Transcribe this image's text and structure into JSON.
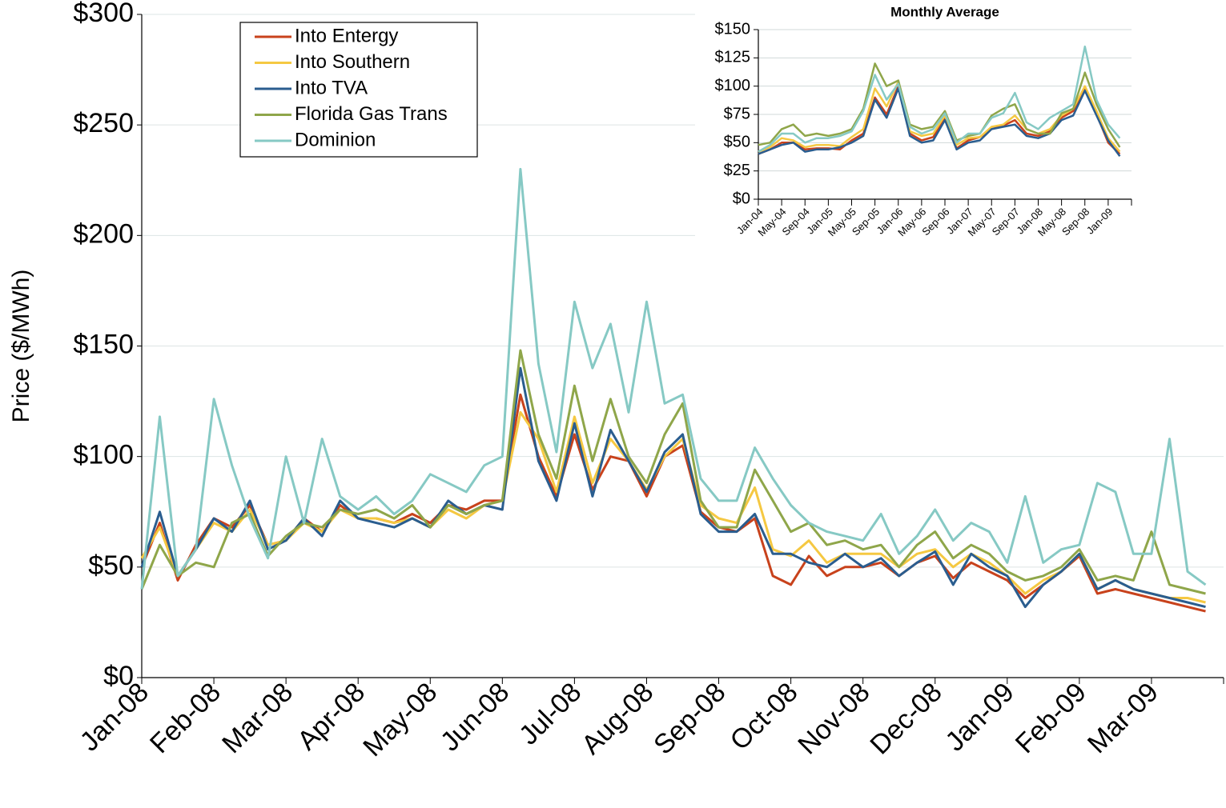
{
  "chart_data": [
    {
      "type": "line",
      "y_label": "Price ($/MWh)",
      "categories": [
        "Jan-08",
        null,
        null,
        null,
        "Feb-08",
        null,
        null,
        null,
        "Mar-08",
        null,
        null,
        null,
        "Apr-08",
        null,
        null,
        null,
        "May-08",
        null,
        null,
        null,
        "Jun-08",
        null,
        null,
        null,
        "Jul-08",
        null,
        null,
        null,
        "Aug-08",
        null,
        null,
        null,
        "Sep-08",
        null,
        null,
        null,
        "Oct-08",
        null,
        null,
        null,
        "Nov-08",
        null,
        null,
        null,
        "Dec-08",
        null,
        null,
        null,
        "Jan-09",
        null,
        null,
        null,
        "Feb-09",
        null,
        null,
        null,
        "Mar-09",
        null,
        null,
        null
      ],
      "series": [
        {
          "name": "Into Entergy",
          "color": "#c8421c",
          "values": [
            50,
            70,
            44,
            60,
            72,
            68,
            78,
            60,
            62,
            72,
            66,
            78,
            72,
            72,
            70,
            74,
            70,
            78,
            76,
            80,
            80,
            128,
            100,
            82,
            110,
            85,
            100,
            98,
            82,
            100,
            105,
            75,
            68,
            66,
            72,
            46,
            42,
            55,
            46,
            50,
            50,
            52,
            46,
            52,
            55,
            45,
            52,
            48,
            44,
            36,
            42,
            48,
            55,
            38,
            40,
            38,
            36,
            34,
            32,
            30
          ]
        },
        {
          "name": "Into Southern",
          "color": "#f5c842",
          "values": [
            54,
            68,
            46,
            58,
            70,
            66,
            76,
            60,
            62,
            70,
            66,
            76,
            72,
            72,
            70,
            72,
            68,
            76,
            72,
            78,
            80,
            120,
            108,
            84,
            118,
            88,
            108,
            98,
            85,
            100,
            108,
            78,
            72,
            70,
            86,
            58,
            55,
            62,
            52,
            56,
            56,
            56,
            50,
            56,
            58,
            50,
            56,
            52,
            46,
            38,
            44,
            48,
            56,
            40,
            44,
            40,
            38,
            36,
            36,
            34
          ]
        },
        {
          "name": "Into TVA",
          "color": "#2a5d8f",
          "values": [
            50,
            75,
            46,
            58,
            72,
            66,
            80,
            58,
            62,
            72,
            64,
            80,
            72,
            70,
            68,
            72,
            68,
            80,
            74,
            78,
            76,
            140,
            98,
            80,
            115,
            82,
            112,
            98,
            84,
            102,
            110,
            74,
            66,
            66,
            74,
            56,
            56,
            52,
            50,
            56,
            50,
            54,
            46,
            52,
            57,
            42,
            56,
            50,
            46,
            32,
            42,
            48,
            56,
            40,
            44,
            40,
            38,
            36,
            34,
            32
          ]
        },
        {
          "name": "Florida Gas Trans",
          "color": "#8fa64a",
          "values": [
            40,
            60,
            46,
            52,
            50,
            70,
            74,
            55,
            64,
            70,
            68,
            76,
            74,
            76,
            72,
            78,
            68,
            78,
            74,
            78,
            80,
            148,
            110,
            90,
            132,
            98,
            126,
            100,
            88,
            110,
            124,
            80,
            68,
            68,
            94,
            80,
            66,
            70,
            60,
            62,
            58,
            60,
            50,
            60,
            66,
            54,
            60,
            56,
            48,
            44,
            46,
            50,
            58,
            44,
            46,
            44,
            66,
            42,
            40,
            38
          ]
        },
        {
          "name": "Dominion",
          "color": "#86c9c4",
          "values": [
            40,
            118,
            46,
            58,
            126,
            96,
            72,
            54,
            100,
            70,
            108,
            82,
            76,
            82,
            74,
            80,
            92,
            88,
            84,
            96,
            100,
            230,
            142,
            102,
            170,
            140,
            160,
            120,
            170,
            124,
            128,
            90,
            80,
            80,
            104,
            90,
            78,
            70,
            66,
            64,
            62,
            74,
            56,
            64,
            76,
            62,
            70,
            66,
            52,
            82,
            52,
            58,
            60,
            88,
            84,
            56,
            56,
            108,
            48,
            42
          ]
        }
      ],
      "ylim": [
        0,
        300
      ],
      "yticks": [
        {
          "value": 0,
          "label": "$0"
        },
        {
          "value": 50,
          "label": "$50"
        },
        {
          "value": 100,
          "label": "$100"
        },
        {
          "value": 150,
          "label": "$150"
        },
        {
          "value": 200,
          "label": "$200"
        },
        {
          "value": 250,
          "label": "$250"
        },
        {
          "value": 300,
          "label": "$300"
        }
      ],
      "grid": true,
      "legend": "upper left"
    },
    {
      "type": "line",
      "title": "Monthly Average",
      "categories": [
        "Jan-04",
        null,
        "May-04",
        null,
        "Sep-04",
        null,
        "Jan-05",
        null,
        "May-05",
        null,
        "Sep-05",
        null,
        "Jan-06",
        null,
        "May-06",
        null,
        "Sep-06",
        null,
        "Jan-07",
        null,
        "May-07",
        null,
        "Sep-07",
        null,
        "Jan-08",
        null,
        "May-08",
        null,
        "Sep-08",
        null,
        "Jan-09",
        null
      ],
      "series": [
        {
          "name": "Into Entergy",
          "color": "#c8421c",
          "values": [
            40,
            44,
            50,
            50,
            44,
            45,
            45,
            44,
            52,
            58,
            90,
            75,
            100,
            58,
            52,
            55,
            72,
            45,
            52,
            55,
            62,
            65,
            70,
            58,
            56,
            60,
            72,
            78,
            98,
            75,
            50,
            40
          ]
        },
        {
          "name": "Into Southern",
          "color": "#f5c842",
          "values": [
            42,
            46,
            54,
            52,
            46,
            48,
            48,
            47,
            55,
            62,
            98,
            82,
            104,
            60,
            56,
            58,
            74,
            48,
            54,
            55,
            64,
            66,
            74,
            62,
            58,
            62,
            74,
            80,
            100,
            78,
            54,
            42
          ]
        },
        {
          "name": "Into TVA",
          "color": "#2a5d8f",
          "values": [
            40,
            44,
            48,
            50,
            42,
            44,
            44,
            46,
            50,
            56,
            88,
            72,
            98,
            56,
            50,
            52,
            70,
            44,
            50,
            52,
            62,
            64,
            66,
            56,
            54,
            58,
            70,
            74,
            96,
            74,
            52,
            38
          ]
        },
        {
          "name": "Florida Gas Trans",
          "color": "#8fa64a",
          "values": [
            48,
            50,
            62,
            66,
            56,
            58,
            56,
            58,
            62,
            80,
            120,
            100,
            105,
            66,
            62,
            64,
            78,
            52,
            56,
            58,
            74,
            80,
            84,
            62,
            58,
            58,
            76,
            80,
            112,
            84,
            62,
            46
          ]
        },
        {
          "name": "Dominion",
          "color": "#86c9c4",
          "values": [
            42,
            48,
            58,
            58,
            50,
            54,
            54,
            56,
            60,
            78,
            110,
            88,
            102,
            64,
            58,
            62,
            76,
            50,
            58,
            58,
            72,
            76,
            94,
            68,
            62,
            72,
            78,
            84,
            135,
            88,
            66,
            54
          ]
        }
      ],
      "ylim": [
        0,
        150
      ],
      "yticks": [
        {
          "value": 0,
          "label": "$0"
        },
        {
          "value": 25,
          "label": "$25"
        },
        {
          "value": 50,
          "label": "$50"
        },
        {
          "value": 75,
          "label": "$75"
        },
        {
          "value": 100,
          "label": "$100"
        },
        {
          "value": 125,
          "label": "$125"
        },
        {
          "value": 150,
          "label": "$150"
        }
      ],
      "grid": true
    }
  ]
}
